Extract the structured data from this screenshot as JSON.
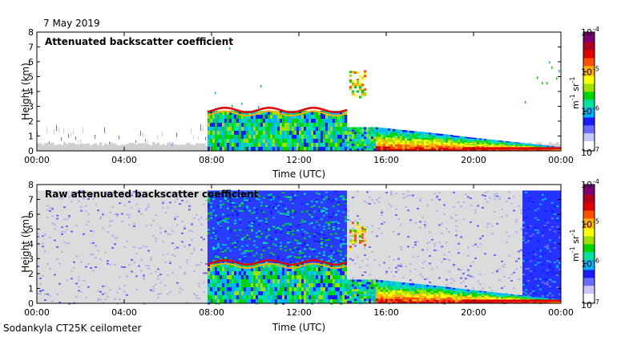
{
  "header": {
    "date": "7 May 2019"
  },
  "footer": {
    "instrument": "Sodankyla CT25K ceilometer"
  },
  "colorbar": {
    "top_label": "10",
    "top_exp": "-4",
    "bottom_label": "10",
    "bottom_exp": "-7",
    "ticks": [
      {
        "base": "10",
        "exp": "-5",
        "value": -5
      },
      {
        "base": "10",
        "exp": "-6",
        "value": -6
      }
    ],
    "unit_base1": "m",
    "unit_exp1": "-1",
    "unit_base2": "sr",
    "unit_exp2": "-1",
    "colors": [
      "#ffffff",
      "#c8c8ff",
      "#6b6bff",
      "#1a1aff",
      "#00b4ff",
      "#00e0a0",
      "#00d400",
      "#9fe000",
      "#ffff00",
      "#ffb000",
      "#ff5000",
      "#e00000",
      "#b00020",
      "#7a0070"
    ]
  },
  "chart_data": [
    {
      "type": "heatmap",
      "title": "Attenuated backscatter coefficient",
      "xlabel": "Time (UTC)",
      "ylabel": "Height (km)",
      "xlim": [
        0,
        24
      ],
      "ylim": [
        0,
        8
      ],
      "x_tick_labels": [
        "00:00",
        "04:00",
        "08:00",
        "12:00",
        "16:00",
        "20:00",
        "00:00"
      ],
      "y_tick_labels": [
        "0",
        "1",
        "2",
        "3",
        "4",
        "5",
        "6",
        "7",
        "8"
      ],
      "features": [
        {
          "name": "boundary-layer",
          "time_start": 7.8,
          "time_end": 24,
          "height_top_km": 2.8
        },
        {
          "name": "cloud-layer",
          "time_start": 7.8,
          "time_end": 14.2,
          "height_km": 2.7
        },
        {
          "name": "elevated-aerosol",
          "time_start": 14.2,
          "time_end": 15.2,
          "height_km": 4.5
        },
        {
          "name": "surface-layer",
          "time_start": 15.5,
          "time_end": 24,
          "height_km": 0.5
        }
      ]
    },
    {
      "type": "heatmap",
      "title": "Raw attenuated backscatter coefficient",
      "xlabel": "Time (UTC)",
      "ylabel": "Height (km)",
      "xlim": [
        0,
        24
      ],
      "ylim": [
        0,
        8
      ],
      "x_tick_labels": [
        "00:00",
        "04:00",
        "08:00",
        "12:00",
        "16:00",
        "20:00",
        "00:00"
      ],
      "y_tick_labels": [
        "0",
        "1",
        "2",
        "3",
        "4",
        "5",
        "6",
        "7",
        "8"
      ],
      "features": [
        {
          "name": "noise-field",
          "time_start": 0,
          "time_end": 24,
          "height_top_km": 8
        },
        {
          "name": "cloud-layer",
          "time_start": 7.8,
          "time_end": 14.2,
          "height_km": 2.7
        },
        {
          "name": "elevated-aerosol",
          "time_start": 14.2,
          "time_end": 15.2,
          "height_km": 4.5
        },
        {
          "name": "surface-layer",
          "time_start": 15.5,
          "time_end": 24,
          "height_km": 0.5
        }
      ]
    }
  ]
}
